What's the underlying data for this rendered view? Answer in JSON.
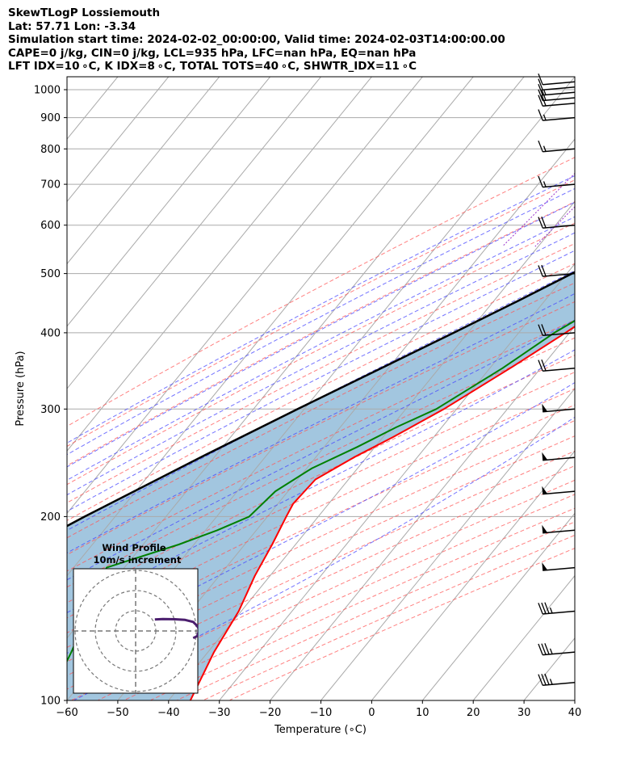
{
  "header": {
    "line1": "SkewTLogP Lossiemouth",
    "line2": "Lat: 57.71   Lon: -3.34",
    "line3": "Simulation start time: 2024-02-02_00:00:00, Valid time: 2024-02-03T14:00:00.00",
    "line4": "CAPE=0 j/kg, CIN=0 j/kg, LCL=935 hPa, LFC=nan hPa, EQ=nan hPa",
    "line5": "LFT IDX=10 ∘C, K IDX=8 ∘C, TOTAL TOTS=40 ∘C, SHWTR_IDX=11 ∘C"
  },
  "colors": {
    "temperature": "#ff0000",
    "dewpoint": "#008000",
    "parcel": "#000000",
    "cape_fill": "#a2c6df",
    "isotherm": "#aaaaaa",
    "dry_adiabat": "#ff5555",
    "moist_adiabat": "#4444ff",
    "mixing_ratio": "#9933cc",
    "hodograph": "#4b1e6e"
  },
  "chart_data": {
    "type": "line",
    "title": "",
    "xlabel": "Temperature (∘C)",
    "ylabel": "Pressure (hPa)",
    "xlim": [
      -60,
      40
    ],
    "ylim": [
      1050,
      100
    ],
    "y_scale": "log",
    "skew": "isotherms skewed 45°",
    "grid": true,
    "x_ticks": [
      "−60",
      "−50",
      "−40",
      "−30",
      "−20",
      "−10",
      "0",
      "10",
      "20",
      "30",
      "40"
    ],
    "y_ticks": [
      "100",
      "200",
      "300",
      "400",
      "500",
      "600",
      "700",
      "800",
      "900",
      "1000"
    ],
    "series": [
      {
        "key": "temperature",
        "pressure_hPa": [
          1000,
          960,
          930,
          900,
          850,
          800,
          750,
          700,
          650,
          600,
          550,
          500,
          450,
          400,
          350,
          300,
          270,
          250,
          230,
          210,
          200,
          180,
          160,
          140,
          120,
          100
        ],
        "temperature_C": [
          6.5,
          3.5,
          2.0,
          1.5,
          0.5,
          -0.2,
          -2.2,
          -3.8,
          -5.5,
          -6.8,
          -9.5,
          -12.5,
          -16.5,
          -20.8,
          -26.0,
          -32.5,
          -38.0,
          -42.5,
          -46.5,
          -47.0,
          -46.3,
          -44.6,
          -43.0,
          -40.5,
          -38.8,
          -35.7
        ]
      },
      {
        "key": "dewpoint",
        "pressure_hPa": [
          1000,
          950,
          900,
          850,
          800,
          750,
          700,
          650,
          600,
          550,
          500,
          450,
          400,
          350,
          300,
          280,
          260,
          240,
          220,
          200,
          190,
          180,
          165,
          140,
          120,
          100
        ],
        "temperature_C": [
          -1.8,
          -2.0,
          -4.0,
          -7.5,
          -11.5,
          -15.0,
          -16.5,
          -15.0,
          -12.5,
          -12.3,
          -14.0,
          -17.5,
          -23.0,
          -27.5,
          -34.0,
          -39.0,
          -43.5,
          -49.0,
          -52.5,
          -53.6,
          -57.7,
          -63.0,
          -73.5,
          -70.0,
          -66.9,
          -63.8
        ]
      },
      {
        "key": "parcel",
        "pressure_hPa": [
          1000,
          960,
          935,
          900,
          850,
          800,
          750,
          700,
          650,
          600,
          550,
          500,
          450,
          400,
          350,
          300,
          250,
          200,
          150,
          100
        ],
        "temperature_C": [
          7.5,
          3.4,
          1.5,
          0.6,
          -1.8,
          -4.3,
          -7.2,
          -10.5,
          -14.2,
          -18.5,
          -23.4,
          -29.0,
          -35.4,
          -42.8,
          -51.4,
          -61.3,
          -72.7,
          -86.0,
          -102.0,
          -122.0
        ]
      }
    ],
    "wind_barbs": {
      "pressure_hPa": [
        1030,
        1010,
        990,
        970,
        950,
        900,
        800,
        700,
        600,
        500,
        400,
        350,
        300,
        250,
        220,
        190,
        165,
        140,
        120,
        107
      ],
      "speed_kt": [
        10,
        10,
        15,
        20,
        20,
        15,
        15,
        15,
        20,
        20,
        20,
        20,
        50,
        50,
        50,
        50,
        50,
        35,
        35,
        35
      ],
      "direction_deg": [
        265,
        265,
        265,
        265,
        265,
        265,
        265,
        265,
        265,
        265,
        265,
        265,
        265,
        265,
        265,
        265,
        265,
        265,
        265,
        265
      ]
    },
    "hodograph": {
      "title_line1": "Wind Profile",
      "title_line2": "10m/s increment",
      "rings_ms": [
        10,
        20,
        30
      ],
      "u_ms": [
        28.5,
        30.5,
        31.5,
        30.5,
        28.5,
        24.5,
        19.5,
        13.5,
        9.5
      ],
      "v_ms": [
        -3.5,
        -2.5,
        0.5,
        2.5,
        4.5,
        5.5,
        5.8,
        5.9,
        5.7
      ]
    }
  }
}
